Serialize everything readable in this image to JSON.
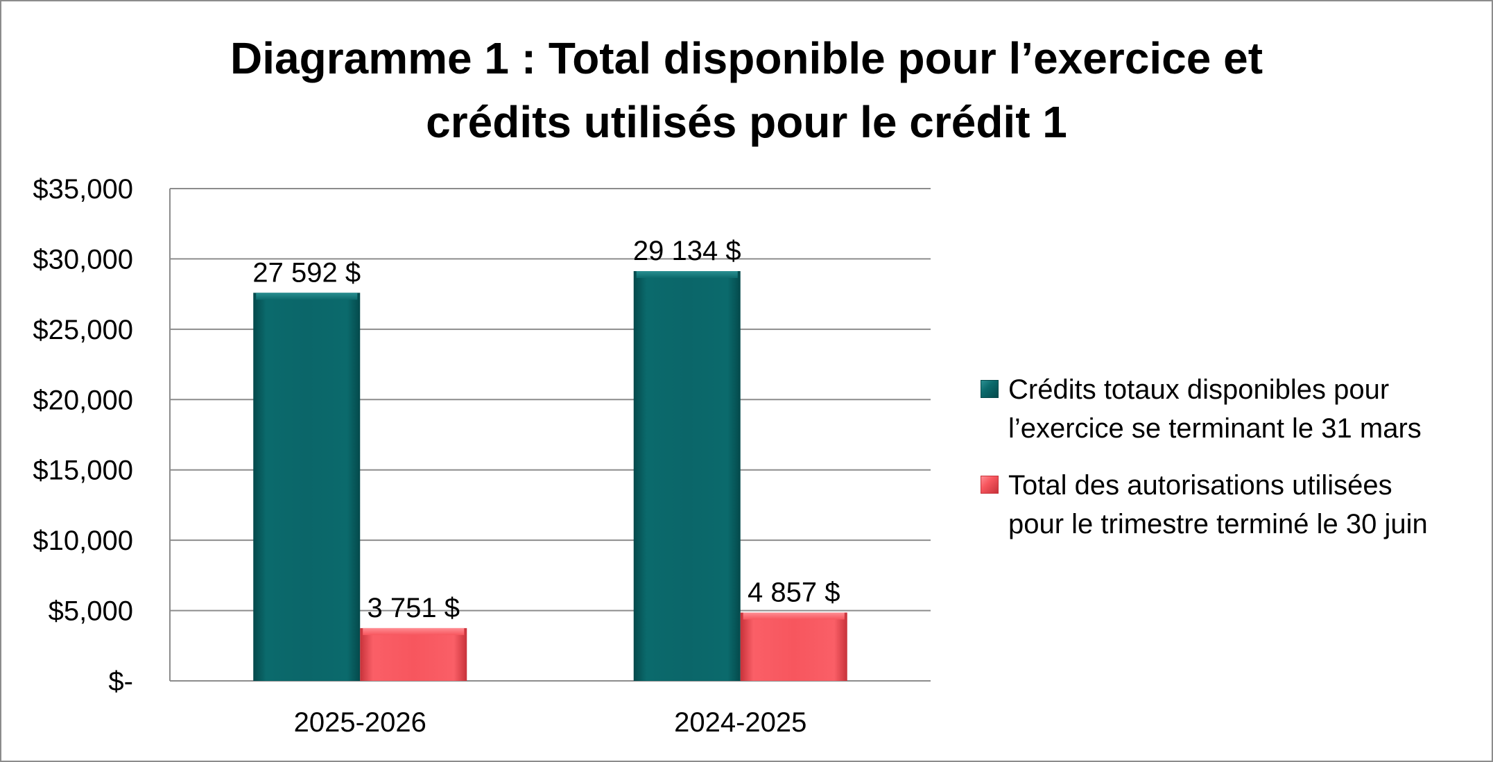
{
  "chart_data": {
    "type": "bar",
    "title_lines": [
      "Diagramme 1 : Total disponible pour l’exercice et",
      "crédits utilisés pour le crédit 1"
    ],
    "categories": [
      "2025-2026",
      "2024-2025"
    ],
    "series": [
      {
        "name": "Crédits totaux disponibles pour l’exercice se terminant le 31 mars",
        "name_lines": [
          "Crédits totaux disponibles pour",
          "l’exercice se terminant le 31 mars"
        ],
        "values": [
          27592,
          29134
        ],
        "labels": [
          "27 592 $",
          "29 134 $"
        ],
        "color": "#0a6466"
      },
      {
        "name": "Total des autorisations utilisées pour le trimestre terminé le 30 juin",
        "name_lines": [
          "Total des autorisations utilisées",
          "pour le trimestre terminé le 30 juin"
        ],
        "values": [
          3751,
          4857
        ],
        "labels": [
          "3 751 $",
          "4 857 $"
        ],
        "color": "#f0545c"
      }
    ],
    "ylim": [
      0,
      35000
    ],
    "yticks": [
      0,
      5000,
      10000,
      15000,
      20000,
      25000,
      30000,
      35000
    ],
    "ytick_labels": [
      "$-",
      "$5,000",
      "$10,000",
      "$15,000",
      "$20,000",
      "$25,000",
      "$30,000",
      "$35,000"
    ],
    "grid": true,
    "legend_position": "right"
  }
}
